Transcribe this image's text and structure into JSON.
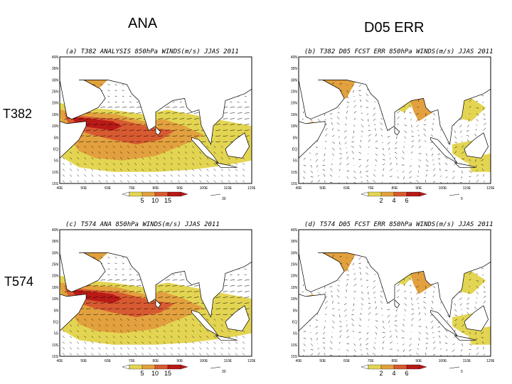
{
  "headers": {
    "ana": "ANA",
    "err": "D05 ERR"
  },
  "rows": {
    "t382": "T382",
    "t574": "T574"
  },
  "colors": {
    "land": "#ffffff",
    "wind_vector": "#000000",
    "level_low": "#e3d552",
    "level_mid": "#e2a13e",
    "level_high": "#d85a30",
    "level_max": "#b81a16",
    "coast": "#000000"
  },
  "panels": [
    {
      "id": "a",
      "title": "(a) T382 ANALYSIS 850hPa WINDS(m/s) JJAS 2011",
      "type": "analysis",
      "lat_labels": [
        "40N",
        "35N",
        "30N",
        "25N",
        "20N",
        "15N",
        "10N",
        "5N",
        "EQ",
        "5S",
        "10S",
        "15S"
      ],
      "lon_labels": [
        "40E",
        "50E",
        "60E",
        "70E",
        "80E",
        "90E",
        "100E",
        "110E",
        "120E"
      ],
      "legend_values": [
        "5",
        "10",
        "15"
      ],
      "ref_vector": "30"
    },
    {
      "id": "b",
      "title": "(b) T382 D05 FCST ERR 850hPa WINDS(m/s) JJAS 2011",
      "type": "error",
      "lat_labels": [
        "40N",
        "35N",
        "30N",
        "25N",
        "20N",
        "15N",
        "10N",
        "5N",
        "EQ",
        "5S",
        "10S",
        "15S"
      ],
      "lon_labels": [
        "40E",
        "50E",
        "60E",
        "70E",
        "80E",
        "90E",
        "100E",
        "110E",
        "120E"
      ],
      "legend_values": [
        "2",
        "4",
        "6"
      ],
      "ref_vector": "5"
    },
    {
      "id": "c",
      "title": "(c) T574 ANA 850hPa WINDS(m/s) JJAS 2011",
      "type": "analysis",
      "lat_labels": [
        "40N",
        "35N",
        "30N",
        "25N",
        "20N",
        "15N",
        "10N",
        "5N",
        "EQ",
        "5S",
        "10S",
        "15S"
      ],
      "lon_labels": [
        "40E",
        "50E",
        "60E",
        "70E",
        "80E",
        "90E",
        "100E",
        "110E",
        "120E"
      ],
      "legend_values": [
        "5",
        "10",
        "15"
      ],
      "ref_vector": "30"
    },
    {
      "id": "d",
      "title": "(d) T574 D05 FCST ERR 850hPa WINDS(m/s) JJAS 2011",
      "type": "error",
      "lat_labels": [
        "40N",
        "35N",
        "30N",
        "25N",
        "20N",
        "15N",
        "10N",
        "5N",
        "EQ",
        "5S",
        "10S",
        "15S"
      ],
      "lon_labels": [
        "40E",
        "50E",
        "60E",
        "70E",
        "80E",
        "90E",
        "100E",
        "110E",
        "120E"
      ],
      "legend_values": [
        "2",
        "4",
        "6"
      ],
      "ref_vector": "5"
    }
  ]
}
